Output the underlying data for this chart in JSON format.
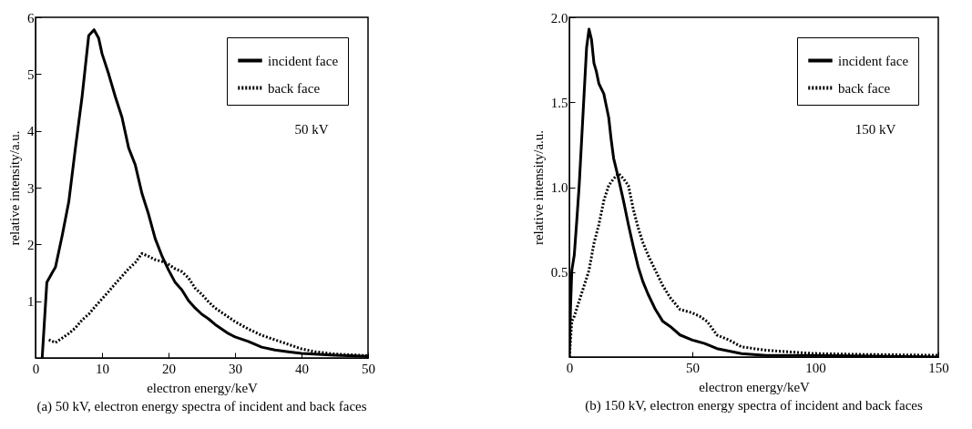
{
  "chart_data": [
    {
      "type": "line",
      "title": "(a) 50 kV, electron energy spectra of incident and back faces",
      "xlabel": "electron energy/keV",
      "ylabel": "relative intensity/a.u.",
      "annotations": [
        "50 kV"
      ],
      "xlim": [
        0,
        50
      ],
      "ylim": [
        0,
        6
      ],
      "xticks": [
        0,
        10,
        20,
        30,
        40,
        50
      ],
      "yticks": [
        1,
        2,
        3,
        4,
        5,
        6
      ],
      "grid": false,
      "legend": "top right",
      "series": [
        {
          "name": "incident face",
          "color": "#000000",
          "line_style": "solid",
          "x": [
            1,
            1.7,
            2.5,
            3,
            4,
            5,
            6,
            7,
            8,
            8.8,
            9.5,
            10,
            11,
            12,
            13,
            14,
            15,
            16,
            17,
            18,
            19,
            20,
            21,
            22,
            23,
            24,
            25,
            26,
            27,
            28,
            29,
            30,
            32,
            34,
            36,
            38,
            40,
            45,
            50
          ],
          "values": [
            0,
            1.33,
            1.5,
            1.6,
            2.15,
            2.75,
            3.7,
            4.6,
            5.68,
            5.78,
            5.63,
            5.36,
            5.0,
            4.6,
            4.24,
            3.7,
            3.4,
            2.9,
            2.53,
            2.1,
            1.8,
            1.55,
            1.33,
            1.2,
            1.01,
            0.88,
            0.77,
            0.69,
            0.59,
            0.51,
            0.43,
            0.37,
            0.29,
            0.19,
            0.14,
            0.11,
            0.08,
            0.05,
            0.03
          ]
        },
        {
          "name": "back face",
          "color": "#000000",
          "line_style": "dotted",
          "x": [
            2,
            3,
            4,
            5,
            6,
            7,
            8,
            9,
            10,
            11,
            12,
            13,
            14,
            15,
            16,
            17,
            18,
            19,
            20,
            21,
            22,
            23,
            24,
            25,
            26,
            27,
            28,
            29,
            30,
            32,
            34,
            36,
            38,
            40,
            42,
            45,
            50
          ],
          "values": [
            0.32,
            0.27,
            0.35,
            0.43,
            0.53,
            0.67,
            0.77,
            0.91,
            1.04,
            1.17,
            1.31,
            1.44,
            1.57,
            1.68,
            1.84,
            1.79,
            1.73,
            1.7,
            1.65,
            1.57,
            1.52,
            1.41,
            1.23,
            1.12,
            0.99,
            0.88,
            0.8,
            0.72,
            0.64,
            0.51,
            0.4,
            0.32,
            0.24,
            0.16,
            0.11,
            0.07,
            0.04
          ]
        }
      ]
    },
    {
      "type": "line",
      "title": "(b) 150 kV, electron energy spectra of incident and back faces",
      "xlabel": "electron energy/keV",
      "ylabel": "relative intensity/a.u.",
      "annotations": [
        "150 kV"
      ],
      "xlim": [
        0,
        150
      ],
      "ylim": [
        0,
        2
      ],
      "xticks": [
        0,
        50,
        100,
        150
      ],
      "yticks": [
        0.5,
        {
          "value": 1,
          "label": "1.0"
        },
        1.5,
        {
          "value": 2,
          "label": "2.0"
        }
      ],
      "grid": false,
      "legend": "top right",
      "series": [
        {
          "name": "incident face",
          "color": "#000000",
          "line_style": "solid",
          "x": [
            0,
            0.5,
            1,
            2,
            3,
            4,
            5,
            6,
            7,
            8,
            9,
            10,
            11,
            12,
            13,
            14,
            15,
            16,
            17,
            18,
            20,
            22,
            24,
            26,
            28,
            30,
            32,
            35,
            38,
            41,
            45,
            50,
            55,
            60,
            70,
            80,
            100,
            150
          ],
          "values": [
            0,
            0.3,
            0.51,
            0.6,
            0.8,
            1.01,
            1.28,
            1.55,
            1.82,
            1.93,
            1.87,
            1.73,
            1.68,
            1.61,
            1.58,
            1.55,
            1.48,
            1.41,
            1.28,
            1.17,
            1.05,
            0.92,
            0.78,
            0.65,
            0.53,
            0.44,
            0.37,
            0.28,
            0.21,
            0.18,
            0.13,
            0.1,
            0.08,
            0.05,
            0.02,
            0.01,
            0.01,
            0
          ]
        },
        {
          "name": "back face",
          "color": "#000000",
          "line_style": "dotted",
          "x": [
            0,
            1,
            2,
            4,
            6,
            8,
            10,
            12,
            14,
            16,
            18,
            20,
            22,
            24,
            26,
            28,
            30,
            32,
            35,
            38,
            41,
            45,
            50,
            53,
            56,
            60,
            65,
            70,
            80,
            90,
            100,
            120,
            150
          ],
          "values": [
            0,
            0.21,
            0.24,
            0.33,
            0.42,
            0.51,
            0.67,
            0.78,
            0.92,
            1.01,
            1.05,
            1.08,
            1.05,
            1.01,
            0.87,
            0.76,
            0.67,
            0.6,
            0.51,
            0.42,
            0.35,
            0.28,
            0.26,
            0.24,
            0.21,
            0.13,
            0.1,
            0.06,
            0.04,
            0.03,
            0.02,
            0.015,
            0.01
          ]
        }
      ]
    }
  ]
}
